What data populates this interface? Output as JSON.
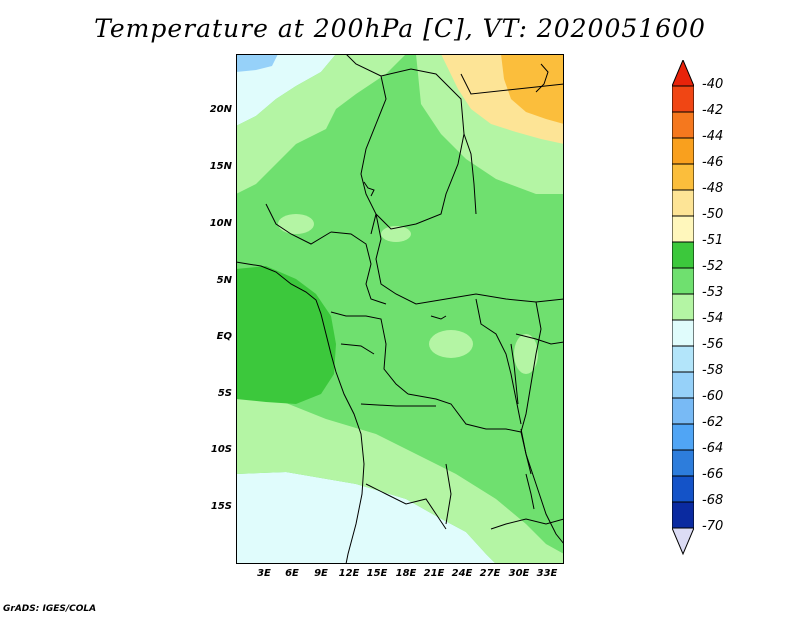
{
  "title": "Temperature at 200hPa [C], VT: 2020051600",
  "credit": "GrADS: IGES/COLA",
  "lat_labels": [
    "20N",
    "15N",
    "10N",
    "5N",
    "EQ",
    "5S",
    "10S",
    "15S"
  ],
  "lon_labels": [
    "3E",
    "6E",
    "9E",
    "12E",
    "15E",
    "18E",
    "21E",
    "24E",
    "27E",
    "30E",
    "33E"
  ],
  "colorbar": {
    "labels": [
      "-40",
      "-42",
      "-44",
      "-46",
      "-48",
      "-50",
      "-51",
      "-52",
      "-53",
      "-54",
      "-56",
      "-58",
      "-60",
      "-62",
      "-64",
      "-66",
      "-68",
      "-70"
    ],
    "colors": [
      "#e8230a",
      "#f04614",
      "#f5781e",
      "#f9a01e",
      "#fbbe3c",
      "#fde496",
      "#fff7bc",
      "#3cc83c",
      "#6fe06f",
      "#b4f5a4",
      "#e0fcfc",
      "#b3e5fa",
      "#96d1f9",
      "#78baf5",
      "#50a5f5",
      "#2d7ddc",
      "#1453c8",
      "#0a2aa0",
      "#000064",
      "#dcdcf5"
    ]
  },
  "map_colors": {
    "ocean_dark": "#3cc83c",
    "green_mid": "#6fe06f",
    "green_light": "#b4f5a4",
    "cyan_pale": "#e0fcfc",
    "blue_light": "#96d1f9",
    "yellow_pale": "#fde496",
    "yellow": "#fbbe3c",
    "border": "#000000"
  }
}
